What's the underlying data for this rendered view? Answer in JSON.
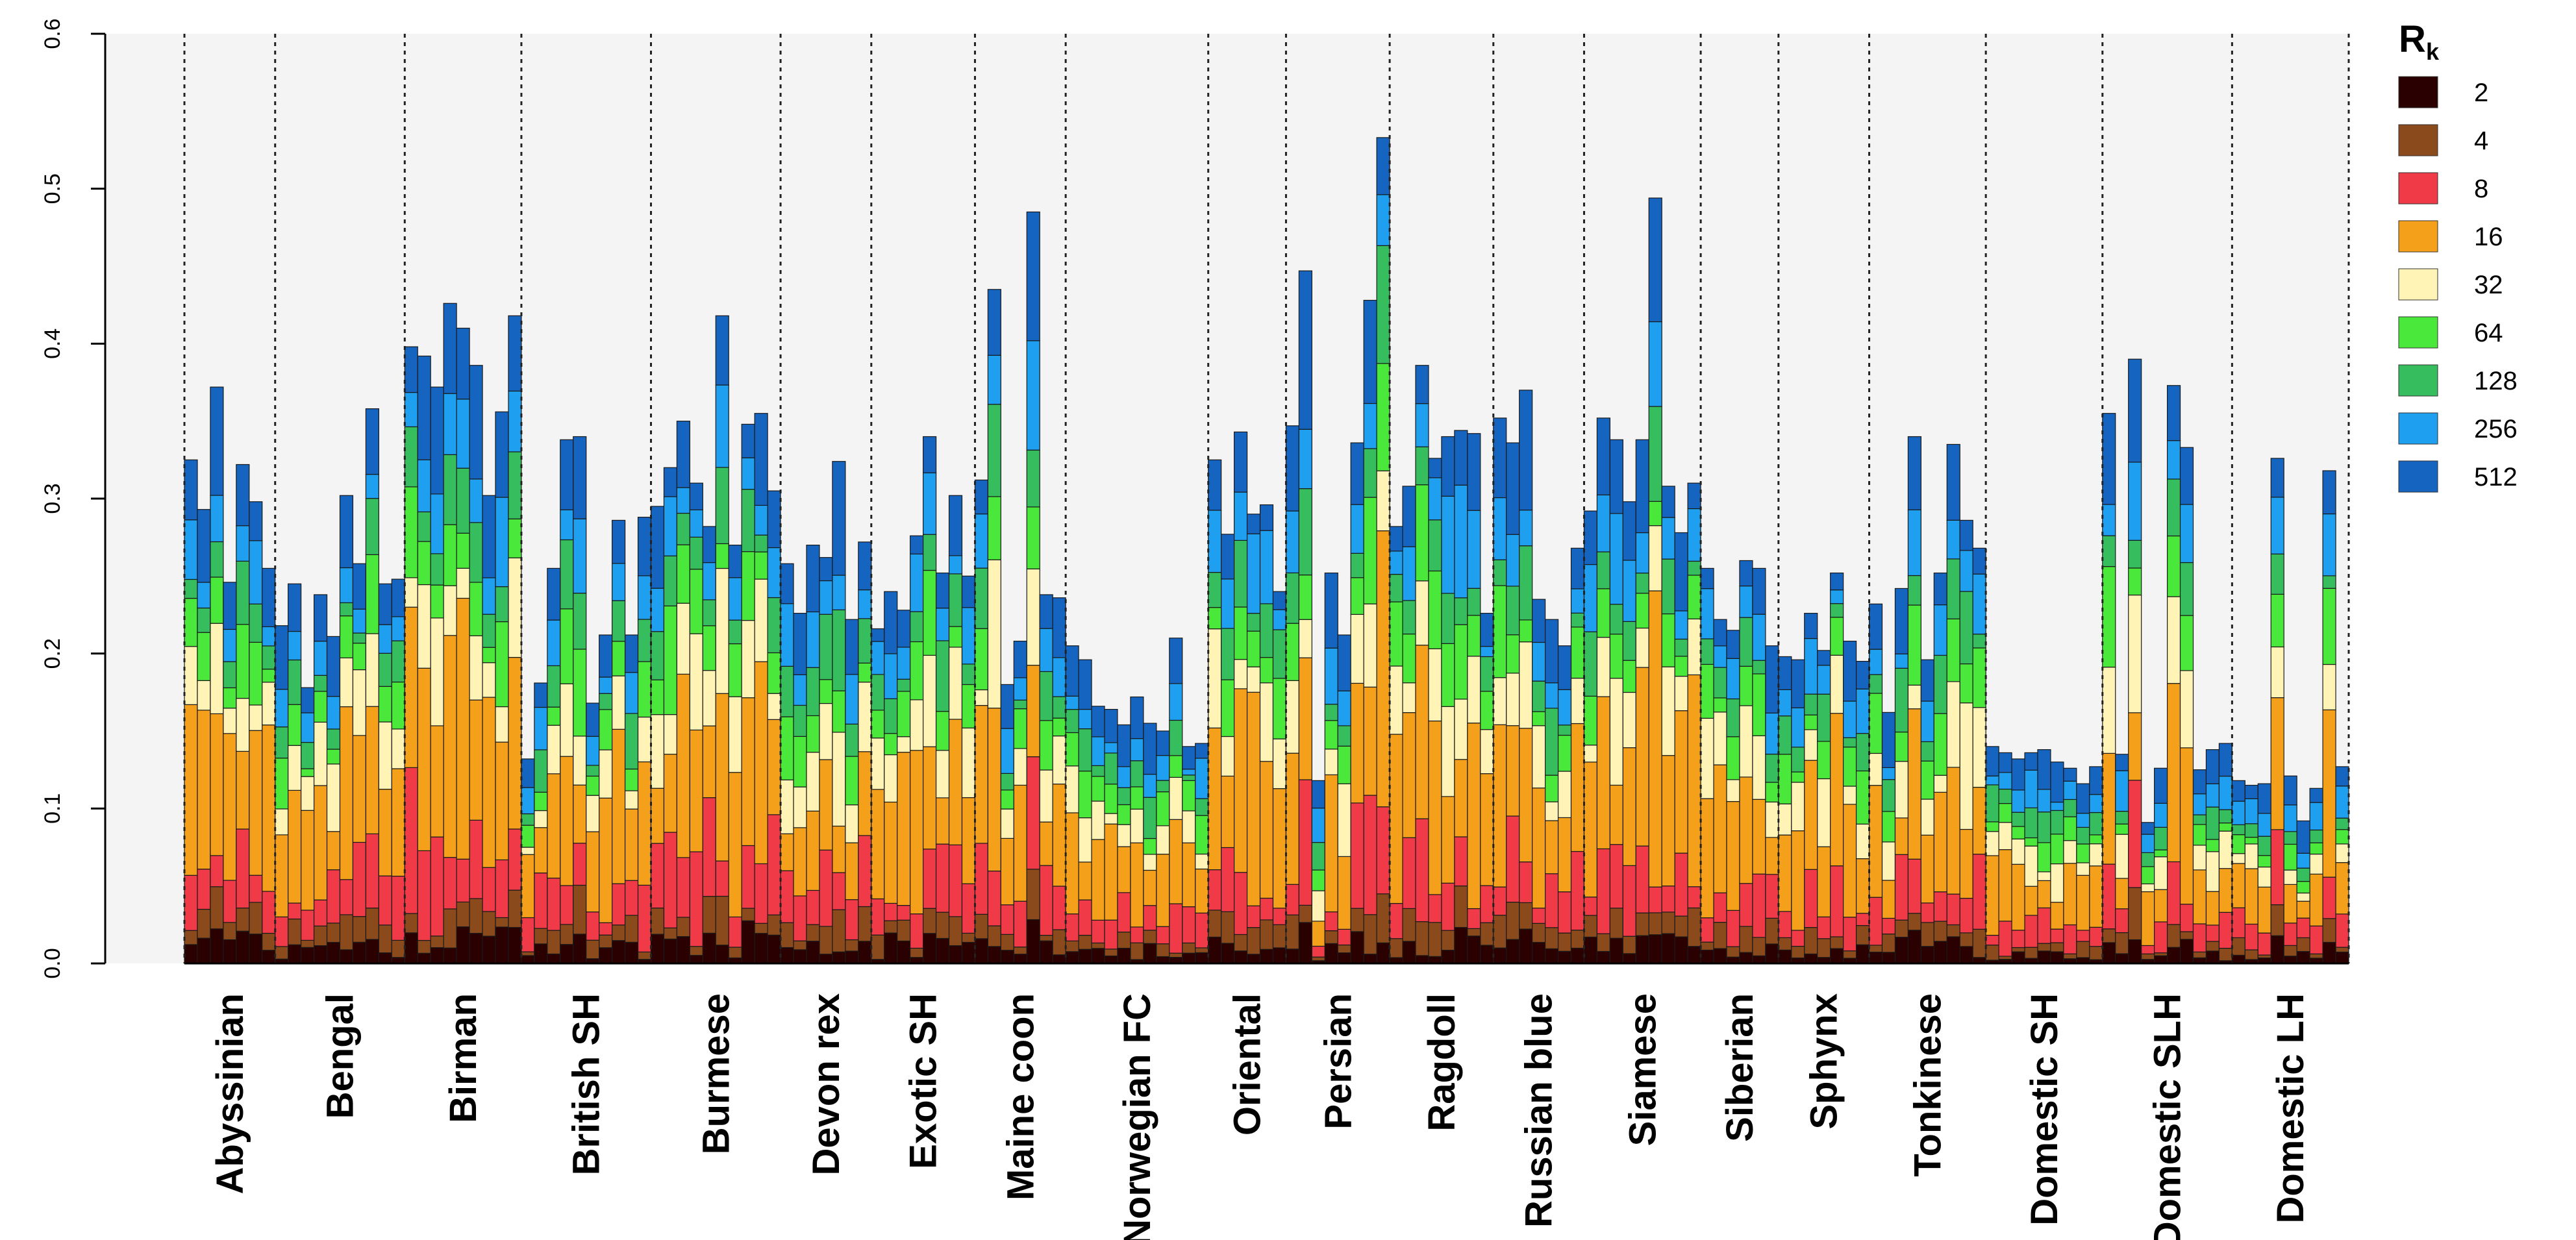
{
  "chart_data": {
    "type": "bar",
    "stacked": true,
    "title": "",
    "xlabel": "",
    "ylabel": "",
    "ylim": [
      0,
      0.6
    ],
    "yticks": [
      "0.0",
      "0.1",
      "0.2",
      "0.3",
      "0.4",
      "0.5",
      "0.6"
    ],
    "legend": {
      "title": "R",
      "title_subscript": "k",
      "position": "right",
      "entries": [
        {
          "label": "2",
          "color": "#2b0000"
        },
        {
          "label": "4",
          "color": "#8b4a1c"
        },
        {
          "label": "8",
          "color": "#f03a48"
        },
        {
          "label": "16",
          "color": "#f5a01a"
        },
        {
          "label": "32",
          "color": "#fff4b5"
        },
        {
          "label": "64",
          "color": "#4ae83a"
        },
        {
          "label": "128",
          "color": "#35bd5e"
        },
        {
          "label": "256",
          "color": "#1e9ff0"
        },
        {
          "label": "512",
          "color": "#1464c0"
        }
      ]
    },
    "series_names": [
      "2",
      "4",
      "8",
      "16",
      "32",
      "64",
      "128",
      "256",
      "512"
    ],
    "groups": [
      {
        "name": "Abyssinian",
        "totals": [
          0.325,
          0.293,
          0.372,
          0.246,
          0.322,
          0.298,
          0.255
        ]
      },
      {
        "name": "Bengal",
        "totals": [
          0.218,
          0.245,
          0.178,
          0.238,
          0.211,
          0.302,
          0.258,
          0.358,
          0.245,
          0.248
        ]
      },
      {
        "name": "Birman",
        "totals": [
          0.398,
          0.392,
          0.372,
          0.426,
          0.41,
          0.386,
          0.302,
          0.356,
          0.418
        ]
      },
      {
        "name": "British SH",
        "totals": [
          0.132,
          0.181,
          0.255,
          0.338,
          0.34,
          0.168,
          0.212,
          0.286,
          0.212,
          0.288
        ]
      },
      {
        "name": "Burmese",
        "totals": [
          0.295,
          0.32,
          0.35,
          0.31,
          0.282,
          0.418,
          0.27,
          0.348,
          0.355,
          0.305
        ]
      },
      {
        "name": "Devon rex",
        "totals": [
          0.258,
          0.226,
          0.27,
          0.262,
          0.324,
          0.222,
          0.272
        ]
      },
      {
        "name": "Exotic SH",
        "totals": [
          0.216,
          0.24,
          0.228,
          0.276,
          0.34,
          0.252,
          0.302,
          0.25
        ]
      },
      {
        "name": "Maine coon",
        "totals": [
          0.312,
          0.435,
          0.18,
          0.208,
          0.485,
          0.238,
          0.236
        ]
      },
      {
        "name": "Norwegian FC",
        "totals": [
          0.205,
          0.196,
          0.166,
          0.164,
          0.154,
          0.172,
          0.155,
          0.15,
          0.21,
          0.14,
          0.142
        ]
      },
      {
        "name": "Oriental",
        "totals": [
          0.325,
          0.277,
          0.343,
          0.29,
          0.296,
          0.24
        ]
      },
      {
        "name": "Persian",
        "totals": [
          0.347,
          0.447,
          0.118,
          0.252,
          0.212,
          0.336,
          0.428,
          0.533
        ]
      },
      {
        "name": "Ragdoll",
        "totals": [
          0.282,
          0.308,
          0.386,
          0.326,
          0.34,
          0.344,
          0.342,
          0.226
        ]
      },
      {
        "name": "Russian blue",
        "totals": [
          0.352,
          0.336,
          0.37,
          0.235,
          0.222,
          0.205,
          0.268
        ]
      },
      {
        "name": "Siamese",
        "totals": [
          0.292,
          0.352,
          0.338,
          0.298,
          0.338,
          0.494,
          0.308,
          0.278,
          0.31
        ]
      },
      {
        "name": "Siberian",
        "totals": [
          0.255,
          0.222,
          0.215,
          0.26,
          0.255,
          0.205
        ]
      },
      {
        "name": "Sphynx",
        "totals": [
          0.198,
          0.196,
          0.226,
          0.202,
          0.252,
          0.208,
          0.195
        ]
      },
      {
        "name": "Tonkinese",
        "totals": [
          0.232,
          0.162,
          0.242,
          0.34,
          0.196,
          0.252,
          0.335,
          0.286,
          0.268
        ]
      },
      {
        "name": "Domestic SH",
        "totals": [
          0.14,
          0.136,
          0.132,
          0.136,
          0.138,
          0.13,
          0.126,
          0.116,
          0.127
        ]
      },
      {
        "name": "Domestic SLH",
        "totals": [
          0.355,
          0.135,
          0.39,
          0.091,
          0.126,
          0.373,
          0.333,
          0.125,
          0.138,
          0.142
        ]
      },
      {
        "name": "Domestic LH",
        "totals": [
          0.118,
          0.115,
          0.116,
          0.326,
          0.121,
          0.092,
          0.113,
          0.318,
          0.127
        ]
      }
    ]
  }
}
